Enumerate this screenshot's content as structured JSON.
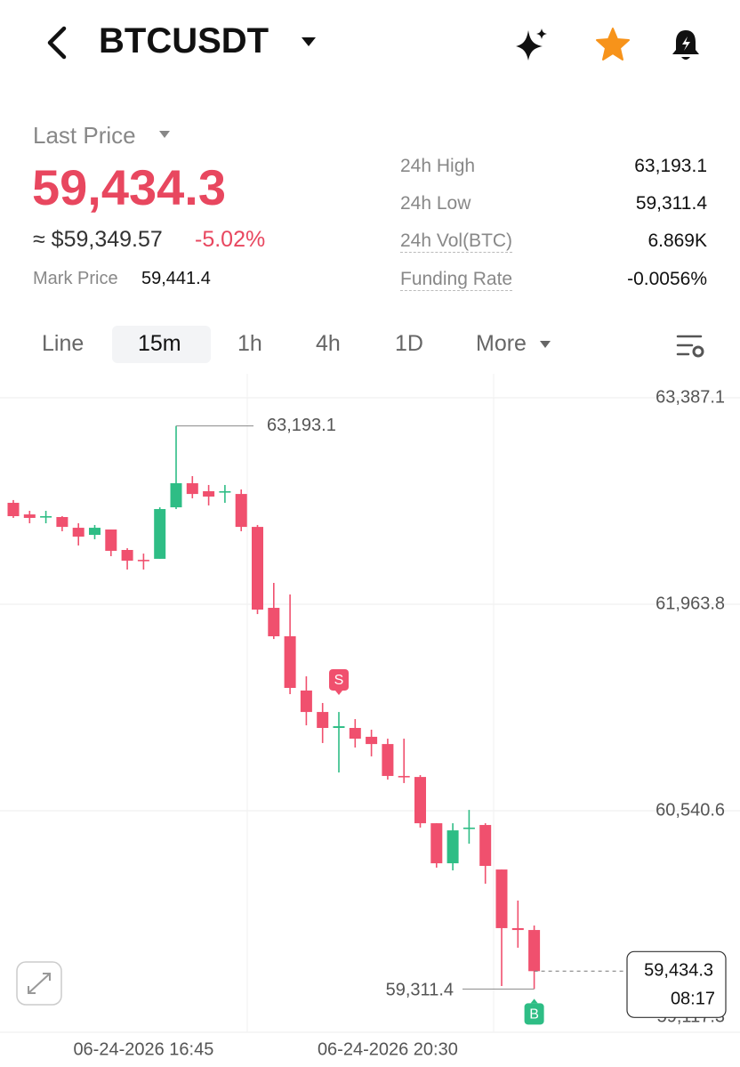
{
  "header": {
    "symbol": "BTCUSDT"
  },
  "ticker": {
    "last_price_label": "Last Price",
    "last_price": "59,434.3",
    "approx_usd": "≈ $59,349.57",
    "change": "-5.02%",
    "mark_price_label": "Mark Price",
    "mark_price": "59,441.4"
  },
  "stats": [
    {
      "label": "24h High",
      "value": "63,193.1"
    },
    {
      "label": "24h Low",
      "value": "59,311.4"
    },
    {
      "label": "24h Vol(BTC)",
      "value": "6.869K"
    },
    {
      "label": "Funding Rate",
      "value": "-0.0056%"
    }
  ],
  "tabs": [
    "Line",
    "15m",
    "1h",
    "4h",
    "1D",
    "More"
  ],
  "chart_data": {
    "type": "candlestick",
    "categories": [
      null,
      null,
      null,
      null,
      null,
      null,
      null,
      null,
      "06-24-2026 16:45",
      null,
      null,
      null,
      null,
      null,
      null,
      null,
      null,
      null,
      null,
      null,
      null,
      null,
      null,
      "06-24-2026 20:30",
      null,
      null,
      null,
      null,
      null,
      null,
      null,
      null,
      null
    ],
    "up_color": "#2ebd85",
    "down_color": "#f0506e",
    "open": [
      62663,
      62583,
      62565,
      62565,
      62491,
      62442,
      62479,
      62338,
      62270,
      62277,
      62632,
      62798,
      62743,
      62737,
      62724,
      62497,
      61939,
      61743,
      61369,
      61221,
      61111,
      61111,
      61050,
      61000,
      60780,
      60773,
      60454,
      60178,
      60418,
      60442,
      60135,
      59731,
      59718
    ],
    "high": [
      62682,
      62608,
      62608,
      62571,
      62522,
      62510,
      62479,
      62350,
      62313,
      62632,
      63193.1,
      62847,
      62786,
      62786,
      62755,
      62510,
      62111,
      62031,
      61467,
      61283,
      61221,
      61172,
      61099,
      61037,
      61037,
      60786,
      60454,
      60454,
      60546,
      60454,
      60135,
      59921,
      59749
    ],
    "low": [
      62559,
      62522,
      62522,
      62467,
      62369,
      62412,
      62295,
      62203,
      62203,
      62277,
      62620,
      62694,
      62645,
      62663,
      62467,
      61896,
      61724,
      61344,
      61129,
      61007,
      60804,
      60976,
      60915,
      60755,
      60731,
      60424,
      60148,
      60129,
      60313,
      60037,
      59332,
      59596,
      59311.4
    ],
    "close": [
      62571,
      62559,
      62571,
      62497,
      62430,
      62491,
      62332,
      62264,
      62264,
      62620,
      62798,
      62724,
      62706,
      62743,
      62497,
      61927,
      61743,
      61387,
      61221,
      61111,
      61123,
      61037,
      61000,
      60780,
      60773,
      60454,
      60178,
      60405,
      60424,
      60160,
      59731,
      59718,
      59434.3
    ],
    "ylim": [
      59043.5,
      63552.7
    ],
    "yticks": [
      {
        "value": 63387.1,
        "label": "63,387.1"
      },
      {
        "value": 61963.8,
        "label": "61,963.8"
      },
      {
        "value": 60540.6,
        "label": "60,540.6"
      },
      {
        "value": 59117.3,
        "label": "59,117.3"
      }
    ],
    "grid": true,
    "max_label": "63,193.1",
    "min_label": "59,311.4",
    "last_label": "59,434.3",
    "countdown": "08:17",
    "markers": [
      {
        "label": "S",
        "color": "#f0506e"
      },
      {
        "label": "B",
        "color": "#2ebd85"
      }
    ]
  }
}
